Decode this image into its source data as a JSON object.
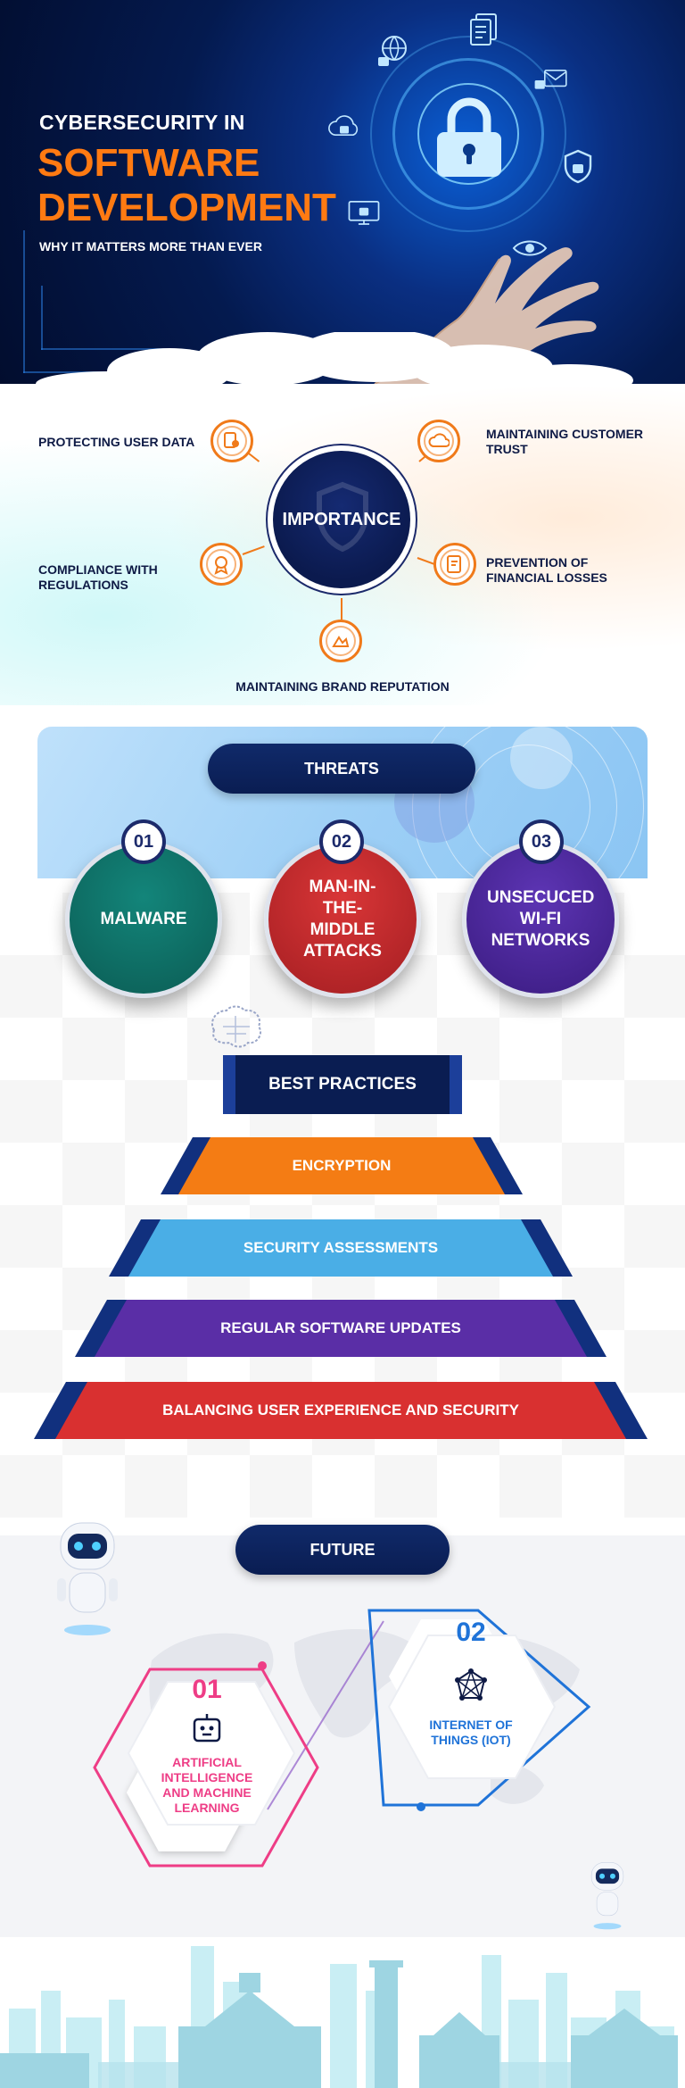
{
  "hero": {
    "title_line1": "CYBERSECURITY IN",
    "title_line2": "SOFTWARE DEVELOPMENT",
    "subtitle": "WHY IT MATTERS MORE THAN EVER",
    "icons": [
      "lock-icon",
      "globe-lock-icon",
      "files-icon",
      "mail-lock-icon",
      "cloud-lock-icon",
      "shield-lock-icon",
      "monitor-lock-icon",
      "eye-icon",
      "hand-icon"
    ]
  },
  "importance": {
    "center_label": "IMPORTANCE",
    "items": [
      {
        "label": "PROTECTING USER DATA",
        "icon": "user-data-icon"
      },
      {
        "label": "MAINTAINING CUSTOMER TRUST",
        "icon": "cloud-trust-icon"
      },
      {
        "label": "COMPLIANCE WITH REGULATIONS",
        "icon": "award-icon"
      },
      {
        "label": "PREVENTION OF FINANCIAL LOSSES",
        "icon": "bill-icon"
      },
      {
        "label": "MAINTAINING BRAND REPUTATION",
        "icon": "brand-icon"
      }
    ],
    "accent_color": "#f07a1a"
  },
  "threats": {
    "title": "THREATS",
    "items": [
      {
        "number": "01",
        "label": "MALWARE",
        "color": "#0d6e63"
      },
      {
        "number": "02",
        "label": "MAN-IN-THE-MIDDLE ATTACKS",
        "color": "#c0282b"
      },
      {
        "number": "03",
        "label": "UNSECUCED WI-FI NETWORKS",
        "color": "#4a2496"
      }
    ]
  },
  "best_practices": {
    "title": "BEST PRACTICES",
    "items": [
      {
        "label": "ENCRYPTION",
        "color": "#f47c14"
      },
      {
        "label": "SECURITY ASSESSMENTS",
        "color": "#4aaee6"
      },
      {
        "label": "REGULAR SOFTWARE UPDATES",
        "color": "#5a2ea6"
      },
      {
        "label": "BALANCING USER EXPERIENCE AND SECURITY",
        "color": "#d93030"
      }
    ],
    "edge_color": "#11307e"
  },
  "future": {
    "title": "FUTURE",
    "items": [
      {
        "number": "01",
        "label": "ARTIFICIAL INTELLIGENCE AND MACHINE LEARNING",
        "color": "#ee3d86",
        "icon": "robot-icon"
      },
      {
        "number": "02",
        "label": "INTERNET OF THINGS (IOT)",
        "color": "#1f73d8",
        "icon": "network-icon"
      }
    ]
  }
}
